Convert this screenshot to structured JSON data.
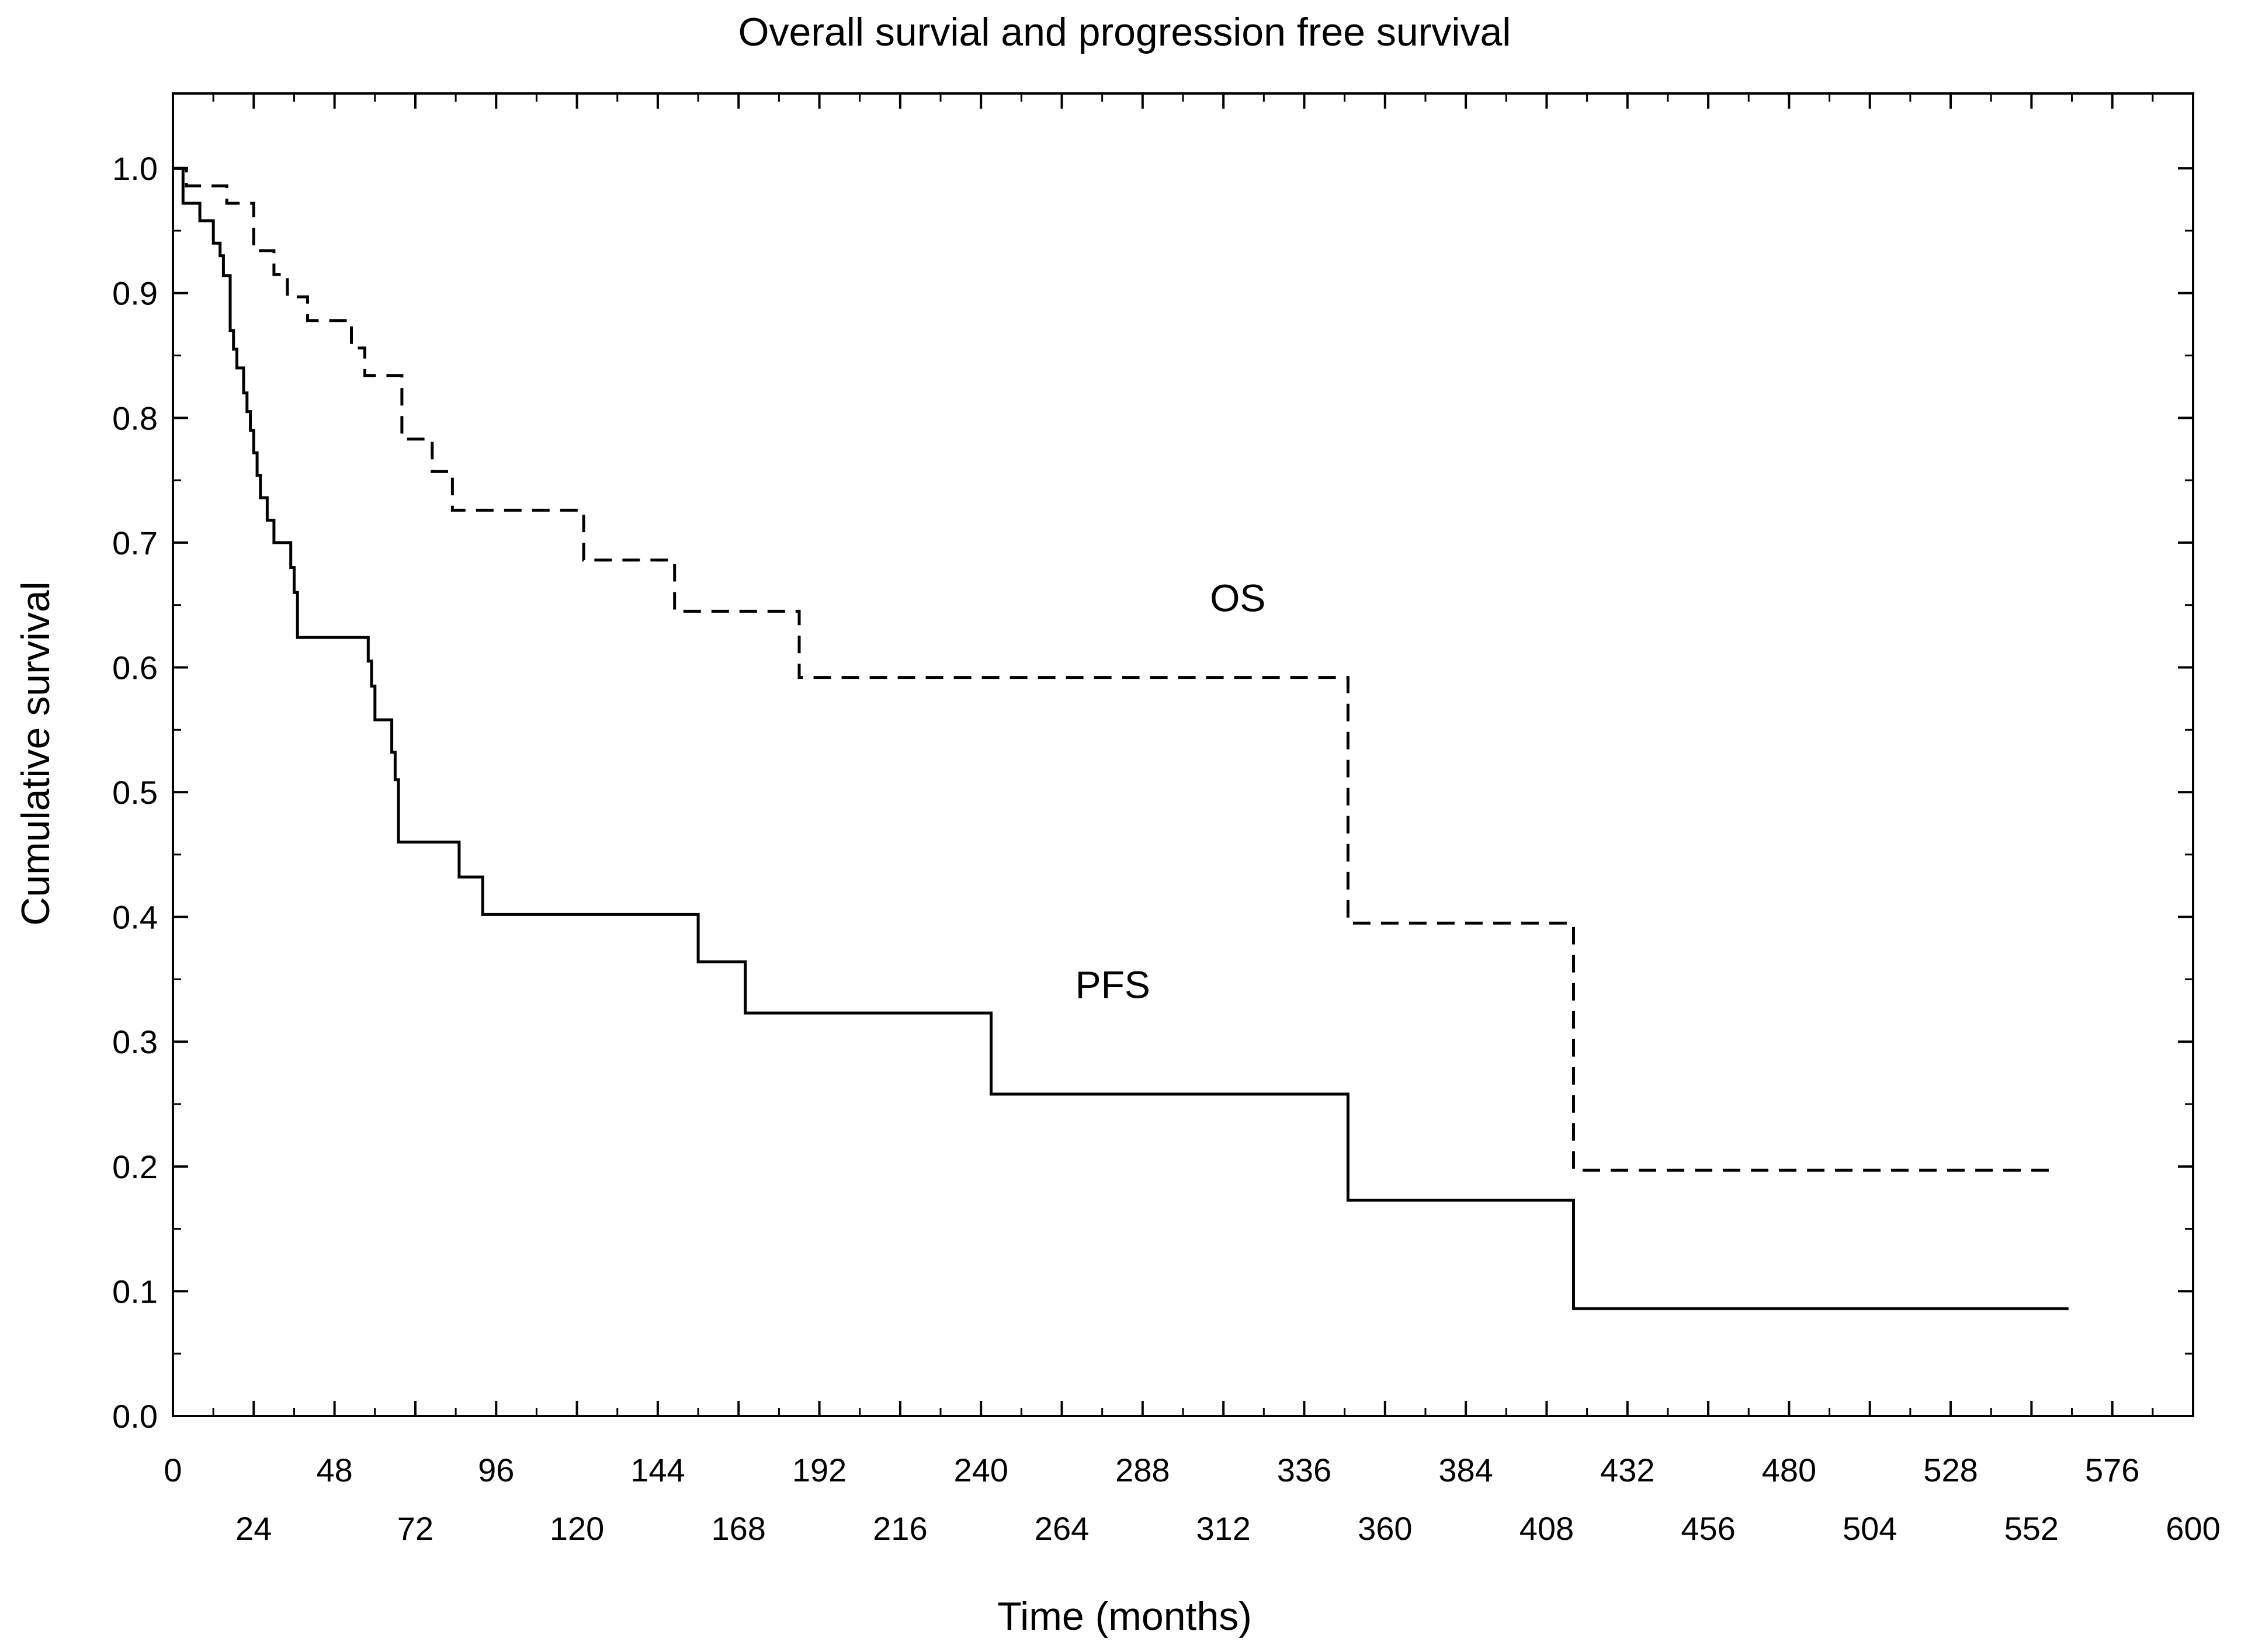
{
  "chart_data": {
    "type": "line",
    "title": "Overall survial and progression free survival",
    "xlabel": "Time (months)",
    "ylabel": "Cumulative survival",
    "xlim": [
      0,
      600
    ],
    "ylim": [
      0,
      1.06
    ],
    "grid": false,
    "x_ticks_upper": [
      "0",
      "48",
      "96",
      "144",
      "192",
      "240",
      "288",
      "336",
      "384",
      "432",
      "480",
      "528",
      "576"
    ],
    "x_ticks_lower": [
      "24",
      "72",
      "120",
      "168",
      "216",
      "264",
      "312",
      "360",
      "408",
      "456",
      "504",
      "552",
      "600"
    ],
    "y_ticks": [
      "0.0",
      "0.1",
      "0.2",
      "0.3",
      "0.4",
      "0.5",
      "0.6",
      "0.7",
      "0.8",
      "0.9",
      "1.0"
    ],
    "series": [
      {
        "name": "OS",
        "label": "OS",
        "style": "dashed",
        "label_at": [
          308,
          0.645
        ],
        "steps": [
          [
            0,
            1.0
          ],
          [
            4,
            0.986
          ],
          [
            16,
            0.972
          ],
          [
            24,
            0.934
          ],
          [
            30,
            0.915
          ],
          [
            34,
            0.897
          ],
          [
            40,
            0.878
          ],
          [
            53,
            0.856
          ],
          [
            57,
            0.834
          ],
          [
            68,
            0.783
          ],
          [
            77,
            0.757
          ],
          [
            83,
            0.726
          ],
          [
            122,
            0.686
          ],
          [
            149,
            0.645
          ],
          [
            186,
            0.592
          ],
          [
            349,
            0.395
          ],
          [
            416,
            0.197
          ],
          [
            560,
            0.197
          ]
        ]
      },
      {
        "name": "PFS",
        "label": "PFS",
        "style": "solid",
        "label_at": [
          268,
          0.335
        ],
        "steps": [
          [
            0,
            1.0
          ],
          [
            3,
            0.972
          ],
          [
            8,
            0.958
          ],
          [
            12,
            0.94
          ],
          [
            14,
            0.93
          ],
          [
            15,
            0.914
          ],
          [
            17,
            0.87
          ],
          [
            18,
            0.855
          ],
          [
            19,
            0.84
          ],
          [
            21,
            0.82
          ],
          [
            22,
            0.805
          ],
          [
            23,
            0.79
          ],
          [
            24,
            0.772
          ],
          [
            25,
            0.754
          ],
          [
            26,
            0.736
          ],
          [
            28,
            0.718
          ],
          [
            30,
            0.7
          ],
          [
            35,
            0.68
          ],
          [
            36,
            0.66
          ],
          [
            37,
            0.624
          ],
          [
            58,
            0.605
          ],
          [
            59,
            0.585
          ],
          [
            60,
            0.558
          ],
          [
            65,
            0.532
          ],
          [
            66,
            0.51
          ],
          [
            67,
            0.46
          ],
          [
            85,
            0.432
          ],
          [
            92,
            0.402
          ],
          [
            156,
            0.364
          ],
          [
            170,
            0.323
          ],
          [
            243,
            0.258
          ],
          [
            349,
            0.173
          ],
          [
            416,
            0.086
          ],
          [
            563,
            0.086
          ]
        ]
      }
    ]
  }
}
